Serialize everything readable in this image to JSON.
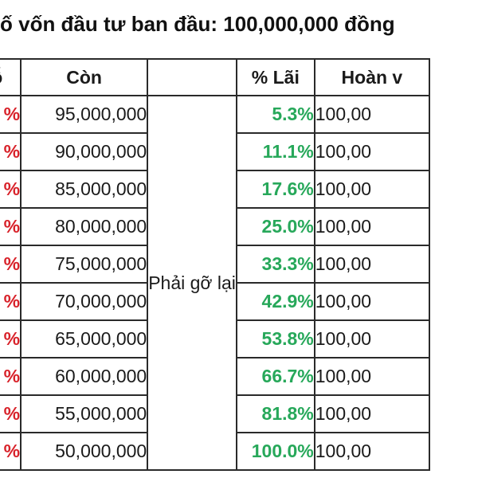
{
  "title": "ố vốn đầu tư ban đầu: 100,000,000 đồng",
  "headers": {
    "loss": "a lỗ",
    "remain": "Còn",
    "note": "",
    "profit": "% Lãi",
    "return": "Hoàn v"
  },
  "note_label": "Phải gỡ lại",
  "rows": [
    {
      "loss": "%",
      "remain": "95,000,000",
      "profit": "5.3%",
      "return": "100,00"
    },
    {
      "loss": "%",
      "remain": "90,000,000",
      "profit": "11.1%",
      "return": "100,00"
    },
    {
      "loss": "%",
      "remain": "85,000,000",
      "profit": "17.6%",
      "return": "100,00"
    },
    {
      "loss": "%",
      "remain": "80,000,000",
      "profit": "25.0%",
      "return": "100,00"
    },
    {
      "loss": "%",
      "remain": "75,000,000",
      "profit": "33.3%",
      "return": "100,00"
    },
    {
      "loss": "%",
      "remain": "70,000,000",
      "profit": "42.9%",
      "return": "100,00"
    },
    {
      "loss": "%",
      "remain": "65,000,000",
      "profit": "53.8%",
      "return": "100,00"
    },
    {
      "loss": "%",
      "remain": "60,000,000",
      "profit": "66.7%",
      "return": "100,00"
    },
    {
      "loss": "%",
      "remain": "55,000,000",
      "profit": "81.8%",
      "return": "100,00"
    },
    {
      "loss": "%",
      "remain": "50,000,000",
      "profit": "100.0%",
      "return": "100,00"
    }
  ],
  "colors": {
    "loss": "#d8222a",
    "profit": "#27a85a",
    "border": "#2a2a2a"
  }
}
